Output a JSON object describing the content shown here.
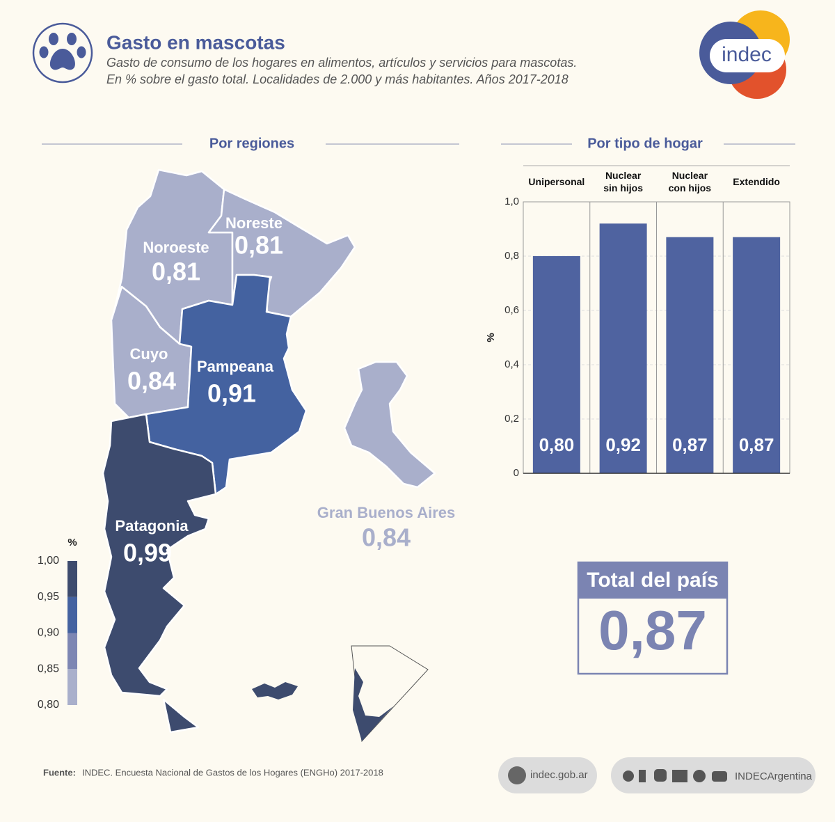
{
  "header": {
    "title": "Gasto en mascotas",
    "subtitle_lines": [
      "Gasto de consumo de los hogares en alimentos, artículos y servicios para mascotas.",
      "En % sobre el gasto total. Localidades de 2.000 y más habitantes. Años 2017-2018"
    ],
    "logo": "indec"
  },
  "map": {
    "title": "Por regiones",
    "regions": [
      {
        "name": "Noroeste",
        "value": 0.81,
        "value_label": "0,81"
      },
      {
        "name": "Noreste",
        "value": 0.81,
        "value_label": "0,81"
      },
      {
        "name": "Cuyo",
        "value": 0.84,
        "value_label": "0,84"
      },
      {
        "name": "Pampeana",
        "value": 0.91,
        "value_label": "0,91"
      },
      {
        "name": "Patagonia",
        "value": 0.99,
        "value_label": "0,99"
      },
      {
        "name": "Gran Buenos Aires",
        "value": 0.84,
        "value_label": "0,84"
      }
    ],
    "legend": {
      "unit": "%",
      "ticks": [
        {
          "value": 0.8,
          "label": "0,80"
        },
        {
          "value": 0.85,
          "label": "0,85"
        },
        {
          "value": 0.9,
          "label": "0,90"
        },
        {
          "value": 0.95,
          "label": "0,95"
        },
        {
          "value": 1,
          "label": "1,00"
        }
      ],
      "colors": [
        "#a9afcb",
        "#7d86b3",
        "#4462a0",
        "#3d4b6e"
      ]
    }
  },
  "chart_data": {
    "type": "bar",
    "title": "Por tipo de hogar",
    "categories": [
      "Unipersonal",
      "Nuclear sin hijos",
      "Nuclear con hijos",
      "Extendido"
    ],
    "values": [
      0.8,
      0.92,
      0.87,
      0.87
    ],
    "value_labels": [
      "0,80",
      "0,92",
      "0,87",
      "0,87"
    ],
    "color": "#4f63a0",
    "ylabel": "%",
    "ylim": [
      0,
      1
    ],
    "yticks": [
      0,
      {
        "value": 0.2,
        "label": "0,2"
      },
      {
        "value": 0.4,
        "label": "0,4"
      },
      {
        "value": 0.6,
        "label": "0,6"
      },
      {
        "value": 0.8,
        "label": "0,8"
      },
      {
        "value": 1,
        "label": "1,0"
      }
    ],
    "grid": true
  },
  "total": {
    "label": "Total del país",
    "value": 0.87,
    "value_label": "0,87"
  },
  "footer": {
    "source_label": "Fuente:",
    "source": "INDEC. Encuesta Nacional de Gastos de los Hogares (ENGHo) 2017-2018",
    "website": "indec.gob.ar",
    "social": "INDECArgentina"
  }
}
